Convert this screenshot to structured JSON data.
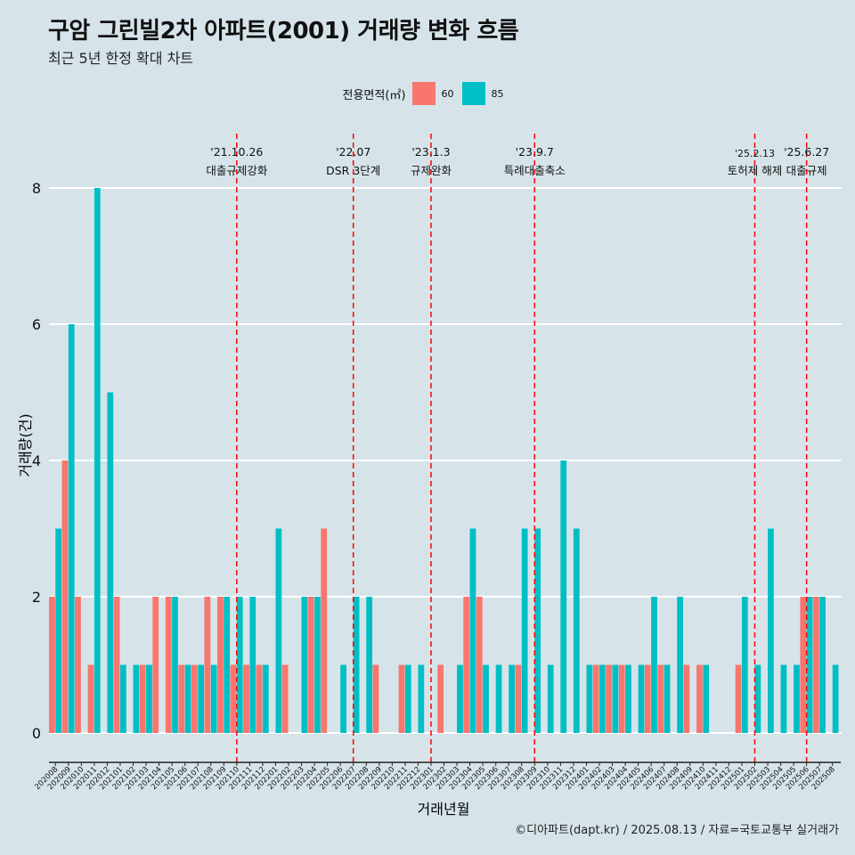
{
  "title": "구암 그린빌2차 아파트(2001) 거래량 변화 흐름",
  "subtitle": "최근 5년 한정 확대 차트",
  "caption": "©디아파트(dapt.kr) / 2025.08.13 / 자료=국토교통부 실거래가",
  "colors": {
    "background": "#d6e4ea",
    "s60": "#f8766d",
    "s85": "#00bfc4",
    "event_line": "#ff0000"
  },
  "chart_data": {
    "type": "bar",
    "xlabel": "거래년월",
    "ylabel": "거래량(건)",
    "ylim": [
      0,
      8
    ],
    "yticks": [
      0,
      2,
      4,
      6,
      8
    ],
    "grid": true,
    "legend": {
      "title": "전용면적(㎡)",
      "position": "top",
      "entries": [
        "60",
        "85"
      ]
    },
    "categories": [
      "202008",
      "202009",
      "202010",
      "202011",
      "202012",
      "202101",
      "202102",
      "202103",
      "202104",
      "202105",
      "202106",
      "202107",
      "202108",
      "202109",
      "202110",
      "202111",
      "202112",
      "202201",
      "202202",
      "202203",
      "202204",
      "202205",
      "202206",
      "202207",
      "202208",
      "202209",
      "202210",
      "202211",
      "202212",
      "202301",
      "202302",
      "202303",
      "202304",
      "202305",
      "202306",
      "202307",
      "202308",
      "202309",
      "202310",
      "202311",
      "202312",
      "202401",
      "202402",
      "202403",
      "202404",
      "202405",
      "202406",
      "202407",
      "202408",
      "202409",
      "202410",
      "202411",
      "202412",
      "202501",
      "202502",
      "202503",
      "202504",
      "202505",
      "202506",
      "202507",
      "202508"
    ],
    "series": [
      {
        "name": "60",
        "values": [
          2,
          4,
          2,
          1,
          0,
          2,
          0,
          1,
          2,
          2,
          1,
          1,
          2,
          2,
          1,
          1,
          1,
          0,
          1,
          0,
          2,
          3,
          0,
          0,
          0,
          1,
          0,
          1,
          0,
          0,
          1,
          0,
          2,
          2,
          0,
          0,
          1,
          0,
          0,
          0,
          0,
          0,
          1,
          1,
          1,
          0,
          1,
          1,
          0,
          1,
          1,
          0,
          0,
          1,
          0,
          0,
          0,
          0,
          2,
          2,
          0
        ]
      },
      {
        "name": "85",
        "values": [
          3,
          6,
          0,
          8,
          5,
          1,
          1,
          1,
          0,
          2,
          1,
          1,
          1,
          2,
          2,
          2,
          1,
          3,
          0,
          2,
          2,
          0,
          1,
          2,
          2,
          0,
          0,
          1,
          1,
          0,
          0,
          1,
          3,
          1,
          1,
          1,
          3,
          3,
          1,
          4,
          3,
          1,
          1,
          1,
          1,
          1,
          2,
          1,
          2,
          0,
          1,
          0,
          0,
          2,
          1,
          3,
          1,
          1,
          2,
          2,
          1
        ]
      }
    ],
    "events": [
      {
        "date": "'21.10.26",
        "label": "대출규제강화",
        "at": "202110"
      },
      {
        "date": "'22.07",
        "label": "DSR 3단계",
        "at": "202207"
      },
      {
        "date": "'23.1.3",
        "label": "규제완화",
        "at": "202301"
      },
      {
        "date": "'23.9.7",
        "label": "특례대출축소",
        "at": "202309"
      },
      {
        "date": "'25.2.13",
        "label": "토허제 해제",
        "at": "202502"
      },
      {
        "date": "'25.6.27",
        "label": "대출규제",
        "at": "202506"
      }
    ]
  }
}
